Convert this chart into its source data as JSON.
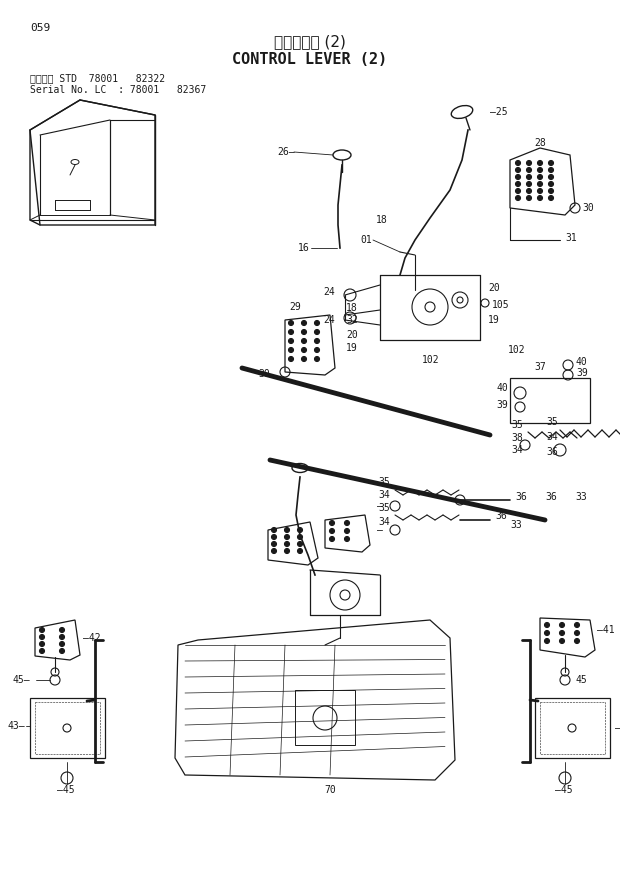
{
  "title_japanese": "操作レバー (2)",
  "title_english": "CONTROL LEVER (2)",
  "page_number": "059",
  "serial_line1": "適用号機 STD  78001   82322",
  "serial_line2": "Serial No. LC  : 78001   82367",
  "bg_color": "#ffffff",
  "lc": "#1a1a1a",
  "figsize": [
    6.2,
    8.76
  ],
  "dpi": 100
}
